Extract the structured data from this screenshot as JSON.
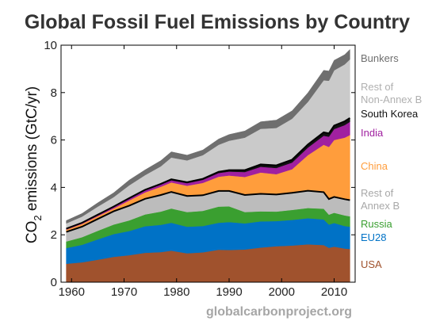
{
  "chart_data": {
    "type": "area",
    "title": "Global Fossil Fuel Emissions by Country",
    "ylabel": {
      "prefix": "CO",
      "sub": "2",
      "suffix": " emissions (GtC/yr)"
    },
    "xlim": [
      1958,
      2014
    ],
    "ylim": [
      0,
      10
    ],
    "xticks": [
      1960,
      1970,
      1980,
      1990,
      2000,
      2010
    ],
    "yticks": [
      0,
      2,
      4,
      6,
      8,
      10
    ],
    "x": [
      1959,
      1962,
      1965,
      1968,
      1971,
      1974,
      1977,
      1979,
      1982,
      1985,
      1988,
      1990,
      1993,
      1996,
      1999,
      2002,
      2005,
      2008,
      2009,
      2010,
      2012,
      2013
    ],
    "series": [
      {
        "name": "USA",
        "color": "#a0522d",
        "values": [
          0.78,
          0.84,
          0.95,
          1.07,
          1.14,
          1.24,
          1.27,
          1.33,
          1.22,
          1.26,
          1.37,
          1.36,
          1.38,
          1.46,
          1.52,
          1.55,
          1.6,
          1.57,
          1.45,
          1.5,
          1.42,
          1.4
        ]
      },
      {
        "name": "EU28",
        "color": "#0072c6",
        "values": [
          0.66,
          0.74,
          0.86,
          0.96,
          1.02,
          1.12,
          1.15,
          1.18,
          1.12,
          1.11,
          1.14,
          1.18,
          1.1,
          1.11,
          1.06,
          1.08,
          1.1,
          1.08,
          0.98,
          1.0,
          0.95,
          0.94
        ]
      },
      {
        "name": "Russia",
        "color": "#3a9f30",
        "values": [
          0.28,
          0.32,
          0.36,
          0.4,
          0.45,
          0.5,
          0.56,
          0.6,
          0.62,
          0.64,
          0.68,
          0.66,
          0.48,
          0.42,
          0.4,
          0.42,
          0.43,
          0.45,
          0.42,
          0.43,
          0.45,
          0.44
        ]
      },
      {
        "name": "Rest of Annex B",
        "color": "#bcbcbc",
        "values": [
          0.4,
          0.44,
          0.5,
          0.56,
          0.62,
          0.66,
          0.7,
          0.7,
          0.68,
          0.66,
          0.66,
          0.65,
          0.72,
          0.74,
          0.72,
          0.72,
          0.73,
          0.7,
          0.66,
          0.67,
          0.68,
          0.68
        ]
      },
      {
        "name": "China",
        "color": "#ff9d3c",
        "values": [
          0.1,
          0.12,
          0.12,
          0.12,
          0.22,
          0.27,
          0.35,
          0.4,
          0.43,
          0.52,
          0.6,
          0.65,
          0.76,
          0.9,
          0.86,
          1.0,
          1.5,
          2.0,
          2.2,
          2.4,
          2.6,
          2.75
        ]
      },
      {
        "name": "India",
        "color": "#a020a0",
        "values": [
          0.03,
          0.04,
          0.05,
          0.06,
          0.07,
          0.08,
          0.09,
          0.09,
          0.11,
          0.13,
          0.16,
          0.17,
          0.21,
          0.24,
          0.26,
          0.28,
          0.32,
          0.38,
          0.43,
          0.46,
          0.53,
          0.56
        ]
      },
      {
        "name": "South Korea",
        "color": "#111111",
        "values": [
          0.01,
          0.01,
          0.01,
          0.02,
          0.03,
          0.03,
          0.03,
          0.04,
          0.04,
          0.04,
          0.05,
          0.06,
          0.08,
          0.1,
          0.11,
          0.12,
          0.13,
          0.14,
          0.14,
          0.15,
          0.16,
          0.16
        ]
      },
      {
        "name": "Rest of Non-Annex B",
        "color": "#cacaca",
        "values": [
          0.22,
          0.26,
          0.34,
          0.4,
          0.54,
          0.62,
          0.74,
          0.92,
          0.92,
          1.0,
          1.14,
          1.24,
          1.37,
          1.5,
          1.58,
          1.73,
          1.8,
          2.2,
          2.22,
          2.33,
          2.4,
          2.47
        ]
      },
      {
        "name": "Bunkers",
        "color": "#6f6f6f",
        "values": [
          0.12,
          0.13,
          0.16,
          0.18,
          0.22,
          0.22,
          0.24,
          0.24,
          0.22,
          0.22,
          0.24,
          0.26,
          0.28,
          0.3,
          0.33,
          0.33,
          0.38,
          0.42,
          0.41,
          0.42,
          0.41,
          0.42
        ]
      }
    ],
    "legend_placement": "right",
    "grid": false
  },
  "source_text": "globalcarbonproject.org"
}
